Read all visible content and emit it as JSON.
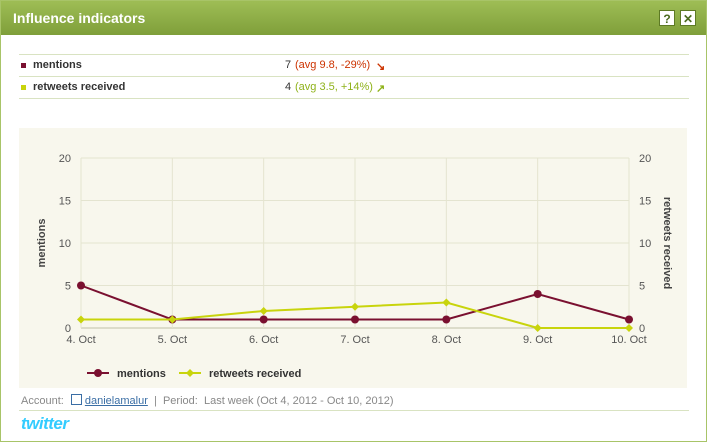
{
  "window": {
    "title": "Influence indicators",
    "help_label": "?",
    "close_label": "✕"
  },
  "metrics": [
    {
      "label": "mentions",
      "value": "7",
      "avg_text": "(avg 9.8, -29%)",
      "trend_icon": "arrow-down-right",
      "trend_color": "#cc3300",
      "color": "#7a1030"
    },
    {
      "label": "retweets received",
      "value": "4",
      "avg_text": "(avg 3.5, +14%)",
      "trend_icon": "arrow-up-right",
      "trend_color": "#8fb21a",
      "color": "#c8d40c"
    }
  ],
  "chart_data": {
    "type": "line",
    "categories": [
      "4. Oct",
      "5. Oct",
      "6. Oct",
      "7. Oct",
      "8. Oct",
      "9. Oct",
      "10. Oct"
    ],
    "ylabel": "mentions",
    "y2label": "retweets received",
    "ylim": [
      0,
      20
    ],
    "y_ticks": [
      "0",
      "5",
      "10",
      "15",
      "20"
    ],
    "grid": true,
    "legend": "bottom-left",
    "series": [
      {
        "name": "mentions",
        "color": "#7a1030",
        "axis": "left",
        "values": [
          5,
          1,
          1,
          1,
          1,
          4,
          1
        ]
      },
      {
        "name": "retweets received",
        "color": "#c8d40c",
        "axis": "right",
        "values": [
          1,
          1,
          2,
          2.5,
          3,
          0,
          0
        ]
      }
    ]
  },
  "footer": {
    "account_label": "Account:",
    "account_name": "danielamalur",
    "separator": "|",
    "period_label": "Period:",
    "period_value": "Last week (Oct 4, 2012 - Oct 10, 2012)"
  },
  "brand": {
    "logo_text": "twitter"
  }
}
